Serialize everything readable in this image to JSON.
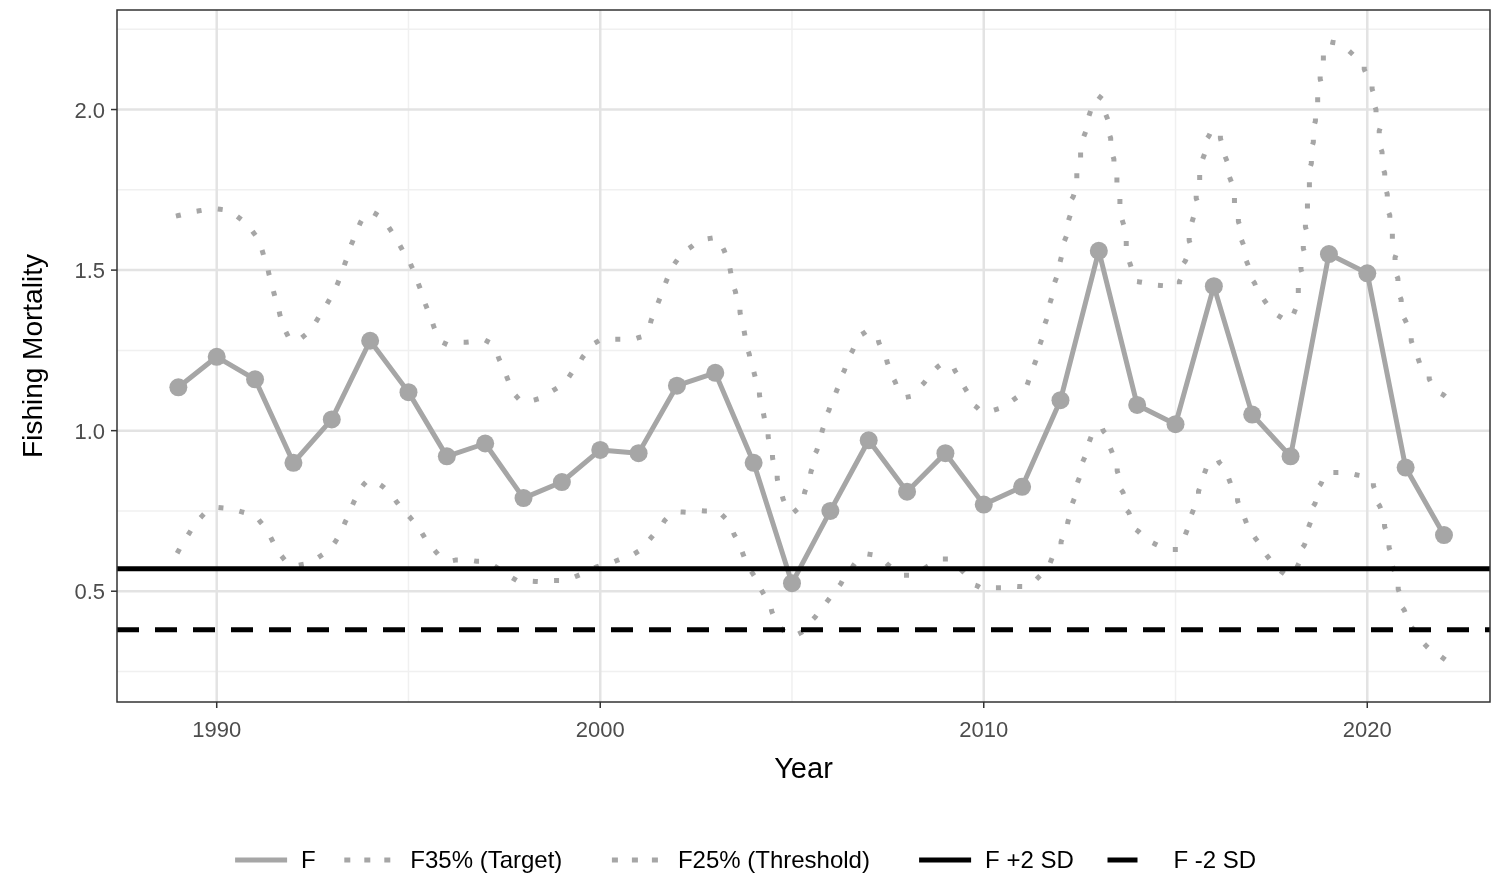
{
  "chart_data": {
    "type": "line",
    "xlabel": "Year",
    "ylabel": "Fishing Mortality",
    "x": [
      1989,
      1990,
      1991,
      1992,
      1993,
      1994,
      1995,
      1996,
      1997,
      1998,
      1999,
      2000,
      2001,
      2002,
      2003,
      2004,
      2005,
      2006,
      2007,
      2008,
      2009,
      2010,
      2011,
      2012,
      2013,
      2014,
      2015,
      2016,
      2017,
      2018,
      2019,
      2020,
      2021,
      2022
    ],
    "series": [
      {
        "name": "F",
        "color": "#a6a6a6",
        "line_style": "solid",
        "marker": "circle",
        "values": [
          1.135,
          1.23,
          1.16,
          0.9,
          1.035,
          1.28,
          1.12,
          0.92,
          0.96,
          0.79,
          0.84,
          0.94,
          0.93,
          1.14,
          1.18,
          0.9,
          0.525,
          0.75,
          0.97,
          0.81,
          0.93,
          0.77,
          0.825,
          1.095,
          1.56,
          1.08,
          1.02,
          1.45,
          1.05,
          0.92,
          1.55,
          1.49,
          0.885,
          0.675
        ]
      },
      {
        "name": "F35% (Target)",
        "color": "#a6a6a6",
        "line_style": "dotted",
        "marker": "none",
        "values": [
          1.67,
          1.69,
          1.61,
          1.28,
          1.42,
          1.68,
          1.53,
          1.27,
          1.28,
          1.09,
          1.145,
          1.28,
          1.29,
          1.53,
          1.6,
          1.185,
          0.745,
          1.075,
          1.31,
          1.105,
          1.21,
          1.06,
          1.12,
          1.53,
          2.04,
          1.465,
          1.45,
          1.94,
          1.475,
          1.345,
          2.21,
          2.11,
          1.34,
          1.11
        ]
      },
      {
        "name": "F25% (Threshold)",
        "color": "#a6a6a6",
        "line_style": "dotted",
        "marker": "none",
        "values": [
          0.625,
          0.76,
          0.73,
          0.58,
          0.64,
          0.845,
          0.735,
          0.6,
          0.59,
          0.53,
          0.535,
          0.58,
          0.625,
          0.745,
          0.75,
          0.55,
          0.36,
          0.48,
          0.615,
          0.55,
          0.6,
          0.51,
          0.515,
          0.65,
          1.01,
          0.69,
          0.63,
          0.91,
          0.68,
          0.55,
          0.87,
          0.855,
          0.43,
          0.29
        ]
      }
    ],
    "ref_lines": [
      {
        "axis": "y",
        "value": 0.57,
        "label": "F +2 SD",
        "color": "#000000",
        "line_style": "solid"
      },
      {
        "axis": "y",
        "value": 0.38,
        "label": "F -2 SD",
        "color": "#000000",
        "line_style": "dashed"
      }
    ],
    "xlim": [
      1987.4,
      2023.2
    ],
    "xticks": [
      1990,
      2000,
      2010,
      2020
    ],
    "ylim": [
      0.155,
      2.31
    ],
    "yticks": [
      {
        "value": 0.5,
        "label": "0.5"
      },
      {
        "value": 1,
        "label": "1.0"
      },
      {
        "value": 1.5,
        "label": "1.5"
      },
      {
        "value": 2,
        "label": "2.0"
      }
    ],
    "grid": true,
    "legend": "bottom"
  }
}
